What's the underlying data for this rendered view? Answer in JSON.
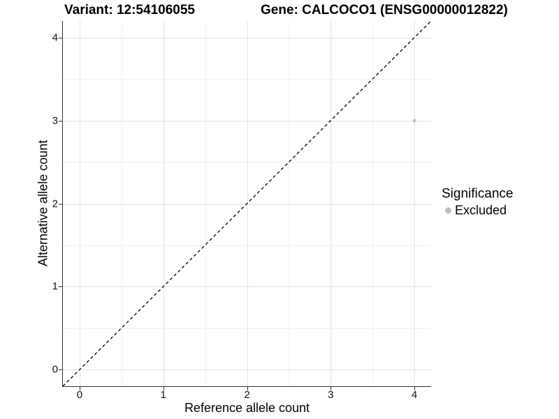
{
  "header": {
    "variant_title": "Variant: 12:54106055",
    "gene_title": "Gene: CALCOCO1 (ENSG00000012822)"
  },
  "chart_data": {
    "type": "scatter",
    "title": "",
    "xlabel": "Reference allele count",
    "ylabel": "Alternative allele count",
    "xlim": [
      -0.2,
      4.2
    ],
    "ylim": [
      -0.2,
      4.2
    ],
    "xticks": [
      0,
      1,
      2,
      3,
      4
    ],
    "yticks": [
      0,
      1,
      2,
      3,
      4
    ],
    "minor_gridlines": [
      0.5,
      1.5,
      2.5,
      3.5
    ],
    "grid": "major and minor, light grey on white",
    "identity_line": {
      "slope": 1,
      "intercept": 0,
      "style": "dashed",
      "color": "#000000"
    },
    "series": [
      {
        "name": "Excluded",
        "color": "#bdbdbd",
        "marker": "circle",
        "points": [
          {
            "x": 4,
            "y": 3
          }
        ]
      }
    ],
    "legend": {
      "position": "right",
      "title": "Significance",
      "items": [
        {
          "label": "Excluded",
          "color": "#bdbdbd",
          "marker": "circle"
        }
      ]
    }
  },
  "colors": {
    "background": "#ffffff",
    "grid_major": "#e3e3e3",
    "grid_minor": "#f0f0f0",
    "axis_line": "#2f2f2f",
    "tick_mark": "#2f2f2f",
    "text": "#000000"
  }
}
